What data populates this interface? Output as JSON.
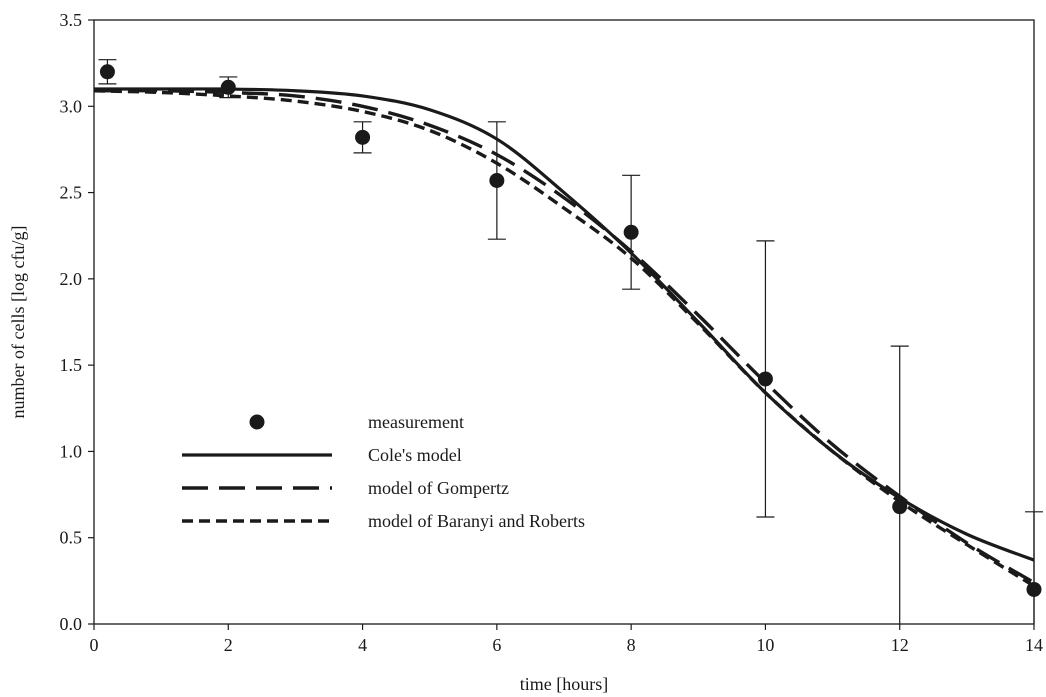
{
  "chart_data": {
    "type": "scatter",
    "title": "",
    "xlabel": "time [hours]",
    "ylabel": "number of cells [log cfu/g]",
    "xlim": [
      0,
      14
    ],
    "ylim": [
      0,
      3.5
    ],
    "xticks": [
      0,
      2,
      4,
      6,
      8,
      10,
      12,
      14
    ],
    "xtick_labels": [
      "0",
      "2",
      "4",
      "6",
      "8",
      "10",
      "12",
      "14"
    ],
    "yticks": [
      0,
      0.5,
      1,
      1.5,
      2,
      2.5,
      3,
      3.5
    ],
    "ytick_labels": [
      "0.0",
      "0.5",
      "1.0",
      "1.5",
      "2.0",
      "2.5",
      "3.0",
      "3.5"
    ],
    "grid": false,
    "legend_position": "center-left",
    "series": [
      {
        "name": "measurement",
        "style": "points",
        "x": [
          0.2,
          2,
          4,
          6,
          8,
          10,
          12,
          14
        ],
        "y": [
          3.2,
          3.11,
          2.82,
          2.57,
          2.27,
          1.42,
          0.68,
          0.2
        ],
        "error_low": [
          3.13,
          3.05,
          2.73,
          2.23,
          1.94,
          0.62,
          0.0,
          0.0
        ],
        "error_high": [
          3.27,
          3.17,
          2.91,
          2.91,
          2.6,
          2.22,
          1.61,
          0.65
        ]
      },
      {
        "name": "Cole's model",
        "style": "solid",
        "x": [
          0,
          1,
          2,
          3,
          4,
          5,
          6,
          7,
          8,
          9,
          10,
          11,
          12,
          13,
          14
        ],
        "y": [
          3.1,
          3.1,
          3.1,
          3.09,
          3.06,
          2.98,
          2.81,
          2.5,
          2.15,
          1.75,
          1.34,
          1.0,
          0.73,
          0.52,
          0.37
        ]
      },
      {
        "name": "model of Gompertz",
        "style": "long-dash",
        "x": [
          0,
          1,
          2,
          3,
          4,
          5,
          6,
          7,
          8,
          9,
          10,
          11,
          12,
          13,
          14
        ],
        "y": [
          3.09,
          3.09,
          3.08,
          3.06,
          3.0,
          2.89,
          2.72,
          2.47,
          2.16,
          1.79,
          1.4,
          1.04,
          0.74,
          0.47,
          0.24
        ]
      },
      {
        "name": "model of Baranyi and Roberts",
        "style": "short-dash",
        "x": [
          0,
          1,
          2,
          3,
          4,
          5,
          6,
          7,
          8,
          9,
          10,
          11,
          12,
          13,
          14
        ],
        "y": [
          3.09,
          3.08,
          3.06,
          3.03,
          2.97,
          2.86,
          2.67,
          2.41,
          2.12,
          1.74,
          1.34,
          1.0,
          0.71,
          0.46,
          0.22
        ]
      }
    ]
  }
}
